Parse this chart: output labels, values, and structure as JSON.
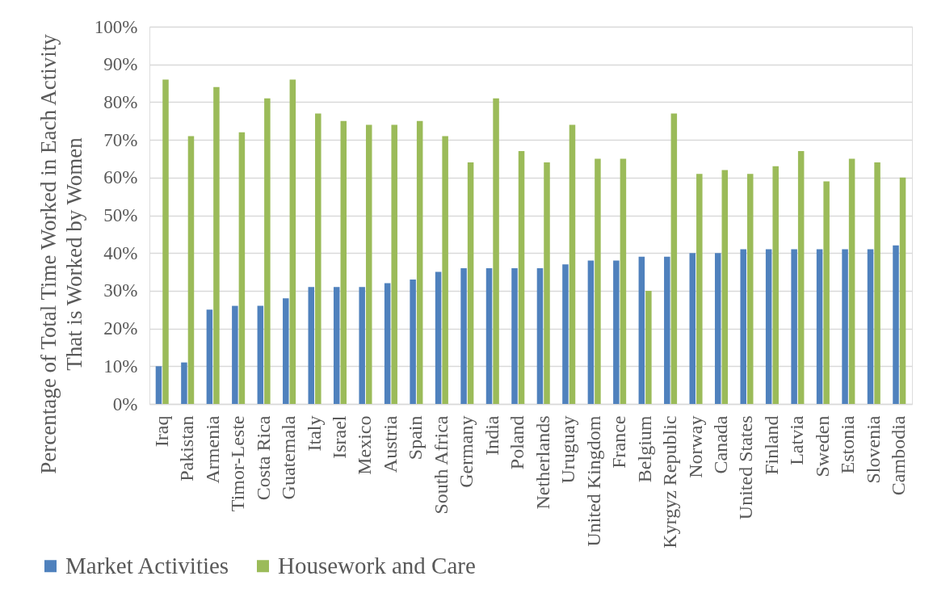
{
  "chart_data": {
    "type": "bar",
    "ylabel": "Percentage of Total Time Worked in Each Activity\nThat is Worked by Women",
    "categories": [
      "Iraq",
      "Pakistan",
      "Armenia",
      "Timor-Leste",
      "Costa Rica",
      "Guatemala",
      "Italy",
      "Israel",
      "Mexico",
      "Austria",
      "Spain",
      "South Africa",
      "Germany",
      "India",
      "Poland",
      "Netherlands",
      "Uruguay",
      "United Kingdom",
      "France",
      "Belgium",
      "Kyrgyz Republic",
      "Norway",
      "Canada",
      "United States",
      "Finland",
      "Latvia",
      "Sweden",
      "Estonia",
      "Slovenia",
      "Cambodia"
    ],
    "series": [
      {
        "name": "Market Activities",
        "color": "#4f81bd",
        "values": [
          10,
          11,
          25,
          26,
          26,
          28,
          31,
          31,
          31,
          32,
          33,
          35,
          36,
          36,
          36,
          36,
          37,
          38,
          38,
          39,
          39,
          40,
          40,
          41,
          41,
          41,
          41,
          41,
          41,
          42
        ]
      },
      {
        "name": "Housework and Care",
        "color": "#9bbb59",
        "values": [
          86,
          71,
          84,
          72,
          81,
          86,
          77,
          75,
          74,
          74,
          75,
          71,
          64,
          81,
          67,
          64,
          74,
          65,
          65,
          30,
          77,
          61,
          62,
          61,
          63,
          67,
          59,
          65,
          64,
          60
        ]
      }
    ],
    "ylim": [
      0,
      100
    ],
    "yticks": [
      {
        "value": 0,
        "label": "0%"
      },
      {
        "value": 10,
        "label": "10%"
      },
      {
        "value": 20,
        "label": "20%"
      },
      {
        "value": 30,
        "label": "30%"
      },
      {
        "value": 40,
        "label": "40%"
      },
      {
        "value": 50,
        "label": "50%"
      },
      {
        "value": 60,
        "label": "60%"
      },
      {
        "value": 70,
        "label": "70%"
      },
      {
        "value": 80,
        "label": "80%"
      },
      {
        "value": 90,
        "label": "90%"
      },
      {
        "value": 100,
        "label": "100%"
      }
    ],
    "grid": "y",
    "legend": "bottom"
  }
}
